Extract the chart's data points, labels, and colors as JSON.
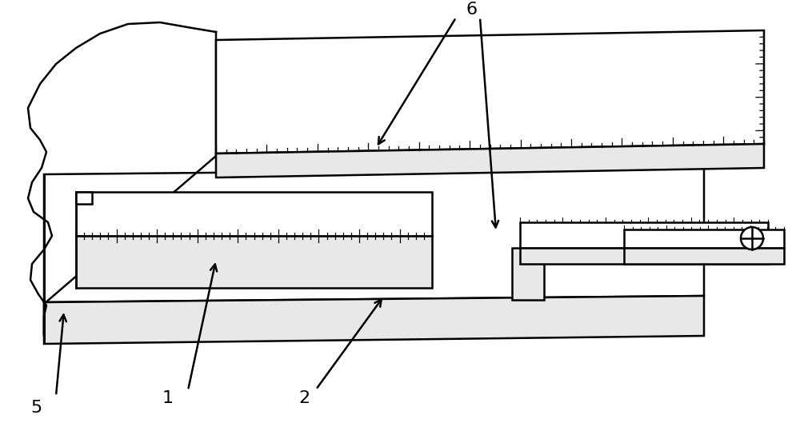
{
  "background_color": "#ffffff",
  "line_color": "#000000",
  "line_width": 1.8,
  "label_fontsize": 16,
  "figsize": [
    10.0,
    5.44
  ],
  "dpi": 100,
  "colors": {
    "top_face": "#ffffff",
    "side_face": "#e8e8e8",
    "front_face": "#d0d0d0"
  }
}
